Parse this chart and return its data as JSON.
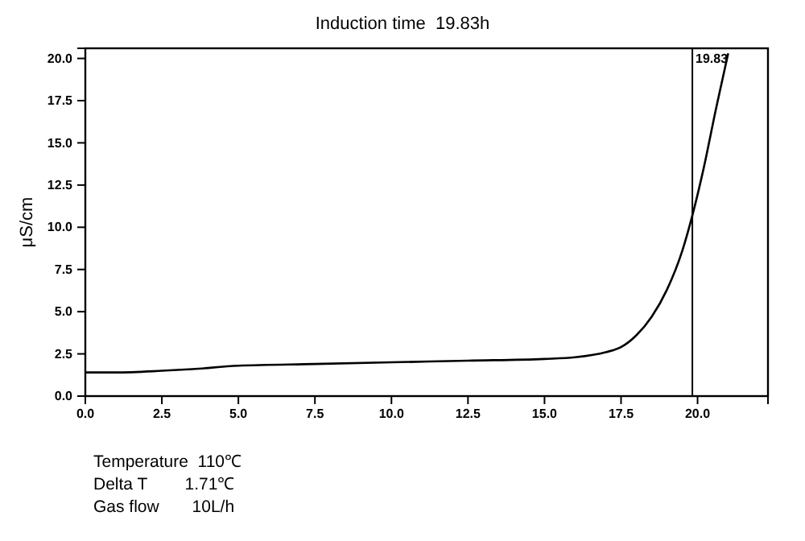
{
  "chart_data": {
    "type": "line",
    "title": "Induction time  19.83h",
    "ylabel": "μS/cm",
    "x": [
      0,
      1,
      2.5,
      3.5,
      5,
      7.5,
      10,
      12.5,
      15,
      16,
      17,
      17.5,
      18,
      18.5,
      19,
      19.5,
      19.83,
      20.2,
      20.6,
      21.0
    ],
    "series": [
      {
        "color": "#000000",
        "values": [
          1.4,
          1.4,
          1.5,
          1.6,
          1.8,
          1.9,
          2.0,
          2.1,
          2.2,
          2.3,
          2.6,
          2.9,
          3.6,
          4.7,
          6.3,
          8.6,
          10.7,
          13.5,
          17.0,
          20.3
        ]
      }
    ],
    "xlim": [
      0,
      22.3
    ],
    "ylim": [
      0,
      20.6
    ],
    "xticks": [
      {
        "value": 0,
        "label": "0.0"
      },
      {
        "value": 2.5,
        "label": "2.5"
      },
      {
        "value": 5,
        "label": "5.0"
      },
      {
        "value": 7.5,
        "label": "7.5"
      },
      {
        "value": 10,
        "label": "10.0"
      },
      {
        "value": 12.5,
        "label": "12.5"
      },
      {
        "value": 15,
        "label": "15.0"
      },
      {
        "value": 17.5,
        "label": "17.5"
      },
      {
        "value": 20,
        "label": "20.0"
      }
    ],
    "yticks": [
      {
        "value": 0,
        "label": "0.0"
      },
      {
        "value": 2.5,
        "label": "2.5"
      },
      {
        "value": 5,
        "label": "5.0"
      },
      {
        "value": 7.5,
        "label": "7.5"
      },
      {
        "value": 10,
        "label": "10.0"
      },
      {
        "value": 12.5,
        "label": "12.5"
      },
      {
        "value": 15,
        "label": "15.0"
      },
      {
        "value": 17.5,
        "label": "17.5"
      },
      {
        "value": 20,
        "label": "20.0"
      }
    ],
    "ref_lines": [
      {
        "axis": "x",
        "value": 19.83,
        "label": "19.83",
        "color": "#000000"
      }
    ],
    "annotations": [
      "Temperature  110℃",
      "Delta T        1.71℃",
      "Gas flow       10L/h"
    ],
    "grid": false,
    "marker": "none",
    "line_style": "solid"
  }
}
